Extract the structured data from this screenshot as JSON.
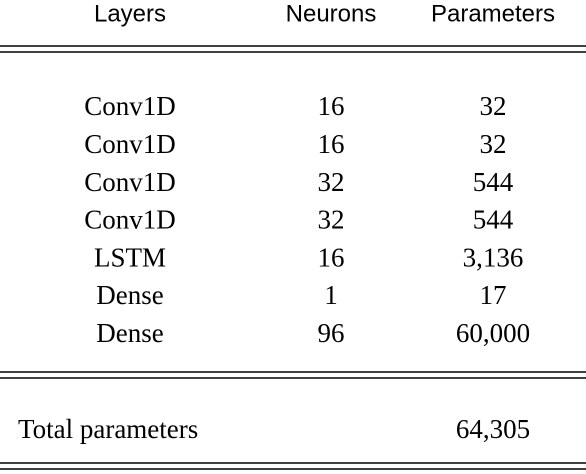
{
  "header": [
    "Layers",
    "Neurons",
    "Parameters"
  ],
  "rows": [
    [
      "Conv1D",
      "16",
      "32"
    ],
    [
      "Conv1D",
      "16",
      "32"
    ],
    [
      "Conv1D",
      "32",
      "544"
    ],
    [
      "Conv1D",
      "32",
      "544"
    ],
    [
      "LSTM",
      "16",
      "3,136"
    ],
    [
      "Dense",
      "1",
      "17"
    ],
    [
      "Dense",
      "96",
      "60,000"
    ]
  ],
  "total": {
    "label": "Total parameters",
    "value": "64,305"
  }
}
